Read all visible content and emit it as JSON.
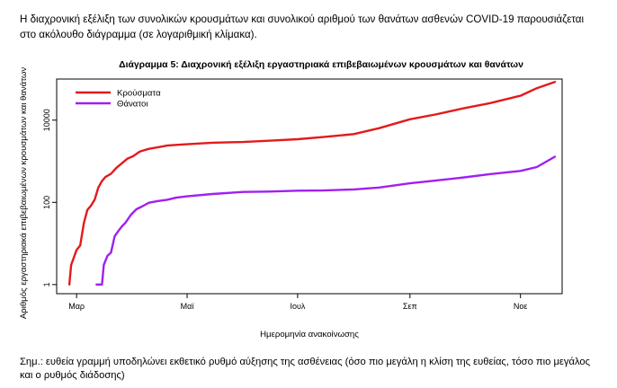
{
  "intro_text": "Η διαχρονική εξέλιξη των συνολικών κρουσμάτων και συνολικού αριθμού των θανάτων ασθενών COVID-19 παρουσιάζεται στο ακόλουθο διάγραμμα (σε λογαριθμική κλίμακα).",
  "note_text": "Σημ.: ευθεία γραμμή υποδηλώνει εκθετικό ρυθμό αύξησης της ασθένειας (όσο πιο μεγάλη η κλίση της ευθείας, τόσο πιο μεγάλος και ο ρυθμός διάδοσης)",
  "chart_data": {
    "type": "line",
    "title": "Διάγραμμα 5: Διαχρονική εξέλιξη εργαστηριακά επιβεβαιωμένων κρουσμάτων και θανάτων",
    "xlabel": "Ημερομηνία ανακοίνωσης",
    "ylabel": "Αριθμός εργαστηριακά επιβεβαιωμένων κρουσμάτων και θανάτων",
    "y_scale": "log",
    "ylim": [
      0.6,
      100000
    ],
    "y_ticks": [
      1,
      100,
      10000
    ],
    "y_tick_labels": [
      "1",
      "100",
      "10000"
    ],
    "xlim": [
      "2020-02-19",
      "2020-11-24"
    ],
    "x_ticks": [
      "2020-03-01",
      "2020-05-01",
      "2020-07-01",
      "2020-09-01",
      "2020-11-01"
    ],
    "x_tick_labels": [
      "Μαρ",
      "Μαϊ",
      "Ιουλ",
      "Σεπ",
      "Νοε"
    ],
    "grid": false,
    "legend_position": "top-left",
    "series": [
      {
        "name": "Κρούσματα",
        "color": "#e31a1c",
        "points": [
          [
            "2020-02-26",
            1
          ],
          [
            "2020-02-27",
            3
          ],
          [
            "2020-03-01",
            7
          ],
          [
            "2020-03-03",
            9
          ],
          [
            "2020-03-05",
            31
          ],
          [
            "2020-03-07",
            66
          ],
          [
            "2020-03-09",
            84
          ],
          [
            "2020-03-11",
            117
          ],
          [
            "2020-03-13",
            228
          ],
          [
            "2020-03-15",
            331
          ],
          [
            "2020-03-17",
            418
          ],
          [
            "2020-03-20",
            495
          ],
          [
            "2020-03-23",
            695
          ],
          [
            "2020-03-26",
            892
          ],
          [
            "2020-03-29",
            1156
          ],
          [
            "2020-04-01",
            1314
          ],
          [
            "2020-04-05",
            1735
          ],
          [
            "2020-04-10",
            2011
          ],
          [
            "2020-04-15",
            2192
          ],
          [
            "2020-04-20",
            2401
          ],
          [
            "2020-04-25",
            2506
          ],
          [
            "2020-05-01",
            2591
          ],
          [
            "2020-05-15",
            2819
          ],
          [
            "2020-06-01",
            2937
          ],
          [
            "2020-06-15",
            3148
          ],
          [
            "2020-07-01",
            3432
          ],
          [
            "2020-07-15",
            3879
          ],
          [
            "2020-08-01",
            4587
          ],
          [
            "2020-08-15",
            6381
          ],
          [
            "2020-09-01",
            10524
          ],
          [
            "2020-09-15",
            13730
          ],
          [
            "2020-10-01",
            19613
          ],
          [
            "2020-10-15",
            25802
          ],
          [
            "2020-11-01",
            39251
          ],
          [
            "2020-11-10",
            59775
          ],
          [
            "2020-11-20",
            85257
          ]
        ]
      },
      {
        "name": "Θάνατοι",
        "color": "#a020f0",
        "points": [
          [
            "2020-03-12",
            1
          ],
          [
            "2020-03-15",
            1
          ],
          [
            "2020-03-16",
            3
          ],
          [
            "2020-03-18",
            5
          ],
          [
            "2020-03-20",
            6
          ],
          [
            "2020-03-22",
            15
          ],
          [
            "2020-03-24",
            20
          ],
          [
            "2020-03-26",
            26
          ],
          [
            "2020-03-28",
            32
          ],
          [
            "2020-03-31",
            50
          ],
          [
            "2020-04-03",
            68
          ],
          [
            "2020-04-06",
            79
          ],
          [
            "2020-04-10",
            98
          ],
          [
            "2020-04-15",
            108
          ],
          [
            "2020-04-20",
            116
          ],
          [
            "2020-04-25",
            130
          ],
          [
            "2020-05-01",
            140
          ],
          [
            "2020-05-15",
            160
          ],
          [
            "2020-06-01",
            179
          ],
          [
            "2020-06-15",
            183
          ],
          [
            "2020-07-01",
            192
          ],
          [
            "2020-07-15",
            194
          ],
          [
            "2020-08-01",
            206
          ],
          [
            "2020-08-15",
            230
          ],
          [
            "2020-09-01",
            290
          ],
          [
            "2020-09-15",
            338
          ],
          [
            "2020-10-01",
            406
          ],
          [
            "2020-10-15",
            486
          ],
          [
            "2020-11-01",
            581
          ],
          [
            "2020-11-10",
            724
          ],
          [
            "2020-11-20",
            1288
          ]
        ]
      }
    ]
  }
}
